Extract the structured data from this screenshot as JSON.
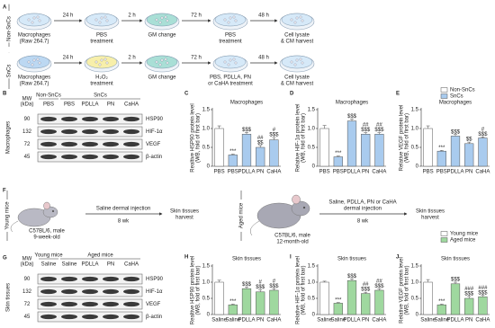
{
  "panel_labels": [
    "A",
    "B",
    "C",
    "D",
    "E",
    "F",
    "G",
    "H",
    "I",
    "J"
  ],
  "panel_a": {
    "rows": [
      {
        "label": "Non-SnCs",
        "times": [
          "24 h",
          "2 h",
          "72 h",
          "48 h"
        ],
        "steps": [
          [
            "Macrophages",
            "(Raw 264.7)"
          ],
          [
            "PBS",
            "treatment"
          ],
          [
            "GM change"
          ],
          [
            "PBS",
            "treatment"
          ],
          [
            "Cell lysate",
            "& CM harvest"
          ]
        ]
      },
      {
        "label": "SnCs",
        "times": [
          "24 h",
          "2 h",
          "72 h",
          "48 h"
        ],
        "steps": [
          [
            "Macrophages",
            "(Raw 264.7)"
          ],
          [
            "H₂O₂",
            "treatment"
          ],
          [
            "GM change"
          ],
          [
            "PBS, PDLLA, PN",
            "or CaHA treatment"
          ],
          [
            "Cell lysate",
            "& CM harvest"
          ]
        ]
      }
    ]
  },
  "panel_b": {
    "side_label": "Macrophages",
    "mw_label": [
      "MW",
      "(kDa)"
    ],
    "groups": [
      "Non-SnCs",
      "SnCs"
    ],
    "lanes": [
      "PBS",
      "PBS",
      "PDLLA",
      "PN",
      "CaHA"
    ],
    "rows": [
      {
        "mw": 90,
        "protein": "HSP90"
      },
      {
        "mw": 132,
        "protein": "HIF-1α"
      },
      {
        "mw": 72,
        "protein": "VEGF"
      },
      {
        "mw": 45,
        "protein": "β-actin"
      }
    ]
  },
  "panel_f": {
    "young": {
      "label": "Young mice",
      "strain": [
        "C57BL/6, male",
        "9-week-old"
      ],
      "treatment": [
        "Saline dermal injection"
      ],
      "duration": "8 wk",
      "outcome": [
        "Skin tissues",
        "harvest"
      ]
    },
    "aged": {
      "label": "Aged mice",
      "strain": [
        "C57BL/6, male",
        "12-month-old"
      ],
      "treatment": [
        "Saline, PDLLA, PN or CaHA",
        "dermal injection"
      ],
      "duration": "8 wk",
      "outcome": [
        "Skin tissues",
        "harvest"
      ]
    }
  },
  "panel_g": {
    "side_label": "Skin tissues",
    "mw_label": [
      "MW",
      "(kDa)"
    ],
    "groups": [
      "Young mice",
      "Aged mice"
    ],
    "lanes": [
      "Saline",
      "Saline",
      "PDLLA",
      "PN",
      "CaHA"
    ],
    "rows": [
      {
        "mw": 90,
        "protein": "HSP90"
      },
      {
        "mw": 132,
        "protein": "HIF-1α"
      },
      {
        "mw": 72,
        "protein": "VEGF"
      },
      {
        "mw": 45,
        "protein": "β-actin"
      }
    ]
  },
  "legends": [
    {
      "items": [
        {
          "name": "Non-SnCs",
          "color": "#ffffff"
        },
        {
          "name": "SnCs",
          "color": "#a9cbee"
        }
      ]
    },
    {
      "items": [
        {
          "name": "Young mice",
          "color": "#ffffff"
        },
        {
          "name": "Aged mice",
          "color": "#9fd89f"
        }
      ]
    }
  ],
  "chart_data": [
    {
      "type": "bar",
      "title": "Macrophages",
      "ylabel": [
        "Realtive HSP90 protein level",
        "(WB, fold of first bar)"
      ],
      "categories": [
        "PBS",
        "PBS",
        "PDLLA",
        "PN",
        "CaHA"
      ],
      "ylim": [
        0,
        1.5
      ],
      "yticks": [
        0,
        0.5,
        {
          "value": 1,
          "label": "1.0"
        },
        1.5
      ],
      "series": [
        {
          "color": "#ffffff",
          "values": [
            1.0,
            null,
            null,
            null,
            null
          ],
          "errors": [
            0.07,
            null,
            null,
            null,
            null
          ]
        },
        {
          "color": "#a9cbee",
          "values": [
            null,
            0.3,
            0.85,
            0.5,
            0.7
          ],
          "errors": [
            null,
            0.02,
            0.05,
            0.05,
            0.06
          ]
        }
      ],
      "annotations": [
        [],
        [
          "***"
        ],
        [
          "$$$"
        ],
        [
          "##",
          "$$"
        ],
        [
          "#",
          "$$$"
        ]
      ]
    },
    {
      "type": "bar",
      "title": "Macrophages",
      "ylabel": [
        "Relative HIF-1α protein level",
        "(WB, fold of first bar)"
      ],
      "categories": [
        "PBS",
        "PBS",
        "PDLLA",
        "PN",
        "CaHA"
      ],
      "ylim": [
        0,
        1.5
      ],
      "yticks": [
        0,
        0.5,
        {
          "value": 1,
          "label": "1.0"
        },
        1.5
      ],
      "series": [
        {
          "color": "#ffffff",
          "values": [
            1.0,
            null,
            null,
            null,
            null
          ],
          "errors": [
            0.08,
            null,
            null,
            null,
            null
          ]
        },
        {
          "color": "#a9cbee",
          "values": [
            null,
            0.25,
            1.2,
            0.85,
            0.85
          ],
          "errors": [
            null,
            0.02,
            0.05,
            0.04,
            0.04
          ]
        }
      ],
      "annotations": [
        [],
        [
          "***"
        ],
        [
          "$$$"
        ],
        [
          "##",
          "$$$"
        ],
        [
          "##",
          "$$$"
        ]
      ]
    },
    {
      "type": "bar",
      "title": "Macrophages",
      "ylabel": [
        "Relative VEGF protein level",
        "(WB, fold of first bar)"
      ],
      "categories": [
        "PBS",
        "PBS",
        "PDLLA",
        "PN",
        "CaHA"
      ],
      "ylim": [
        0,
        1.5
      ],
      "yticks": [
        0,
        0.5,
        {
          "value": 1,
          "label": "1.0"
        },
        1.5
      ],
      "series": [
        {
          "color": "#ffffff",
          "values": [
            1.0,
            null,
            null,
            null,
            null
          ],
          "errors": [
            0.07,
            null,
            null,
            null,
            null
          ]
        },
        {
          "color": "#a9cbee",
          "values": [
            null,
            0.4,
            0.8,
            0.6,
            0.75
          ],
          "errors": [
            null,
            0.02,
            0.04,
            0.04,
            0.03
          ]
        }
      ],
      "annotations": [
        [],
        [
          "***"
        ],
        [
          "$$$"
        ],
        [
          "$$"
        ],
        [
          "#",
          "$$$"
        ]
      ]
    },
    {
      "type": "bar",
      "title": "Skin tissues",
      "ylabel": [
        "Realtive HSP90 protein level",
        "(WB, fold of first bar)"
      ],
      "categories": [
        "Saline",
        "Saline",
        "PDLLA",
        "PN",
        "CaHA"
      ],
      "ylim": [
        0,
        1.5
      ],
      "yticks": [
        0,
        0.5,
        {
          "value": 1,
          "label": "1.0"
        },
        1.5
      ],
      "series": [
        {
          "color": "#ffffff",
          "values": [
            1.0,
            null,
            null,
            null,
            null
          ],
          "errors": [
            0.06,
            null,
            null,
            null,
            null
          ]
        },
        {
          "color": "#9fd89f",
          "values": [
            null,
            0.3,
            0.8,
            0.7,
            0.75
          ],
          "errors": [
            null,
            0.02,
            0.05,
            0.06,
            0.05
          ]
        }
      ],
      "annotations": [
        [],
        [
          "***"
        ],
        [
          "$$$"
        ],
        [
          "#",
          "$$$"
        ],
        [
          "#",
          "$$$"
        ]
      ]
    },
    {
      "type": "bar",
      "title": "Skin tissues",
      "ylabel": [
        "Relative HIF-1α protein level",
        "(WB, fold of first bar)"
      ],
      "categories": [
        "Saline",
        "Saline",
        "PDLLA",
        "PN",
        "CaHA"
      ],
      "ylim": [
        0,
        1.5
      ],
      "yticks": [
        0,
        0.5,
        {
          "value": 1,
          "label": "1.0"
        },
        1.5
      ],
      "series": [
        {
          "color": "#ffffff",
          "values": [
            1.0,
            null,
            null,
            null,
            null
          ],
          "errors": [
            0.03,
            null,
            null,
            null,
            null
          ]
        },
        {
          "color": "#9fd89f",
          "values": [
            null,
            0.35,
            1.05,
            0.65,
            0.75
          ],
          "errors": [
            null,
            0.02,
            0.05,
            0.04,
            0.04
          ]
        }
      ],
      "annotations": [
        [],
        [
          "***"
        ],
        [
          "$$$"
        ],
        [
          "##",
          "$$$"
        ],
        [
          "##",
          "$$$"
        ]
      ]
    },
    {
      "type": "bar",
      "title": "Skin tissues",
      "ylabel": [
        "Relative VEGF protein level",
        "(WB, fold of first bar)"
      ],
      "categories": [
        "Saline",
        "Saline",
        "PDLLA",
        "PN",
        "CaHA"
      ],
      "ylim": [
        0,
        1.5
      ],
      "yticks": [
        0,
        0.5,
        {
          "value": 1,
          "label": "1.0"
        },
        1.5
      ],
      "series": [
        {
          "color": "#ffffff",
          "values": [
            1.0,
            null,
            null,
            null,
            null
          ],
          "errors": [
            0.08,
            null,
            null,
            null,
            null
          ]
        },
        {
          "color": "#9fd89f",
          "values": [
            null,
            0.3,
            0.95,
            0.5,
            0.55
          ],
          "errors": [
            null,
            0.02,
            0.05,
            0.06,
            0.04
          ]
        }
      ],
      "annotations": [
        [],
        [
          "***"
        ],
        [
          "$$$"
        ],
        [
          "###",
          "$$$"
        ],
        [
          "###",
          "$$$"
        ]
      ]
    }
  ]
}
